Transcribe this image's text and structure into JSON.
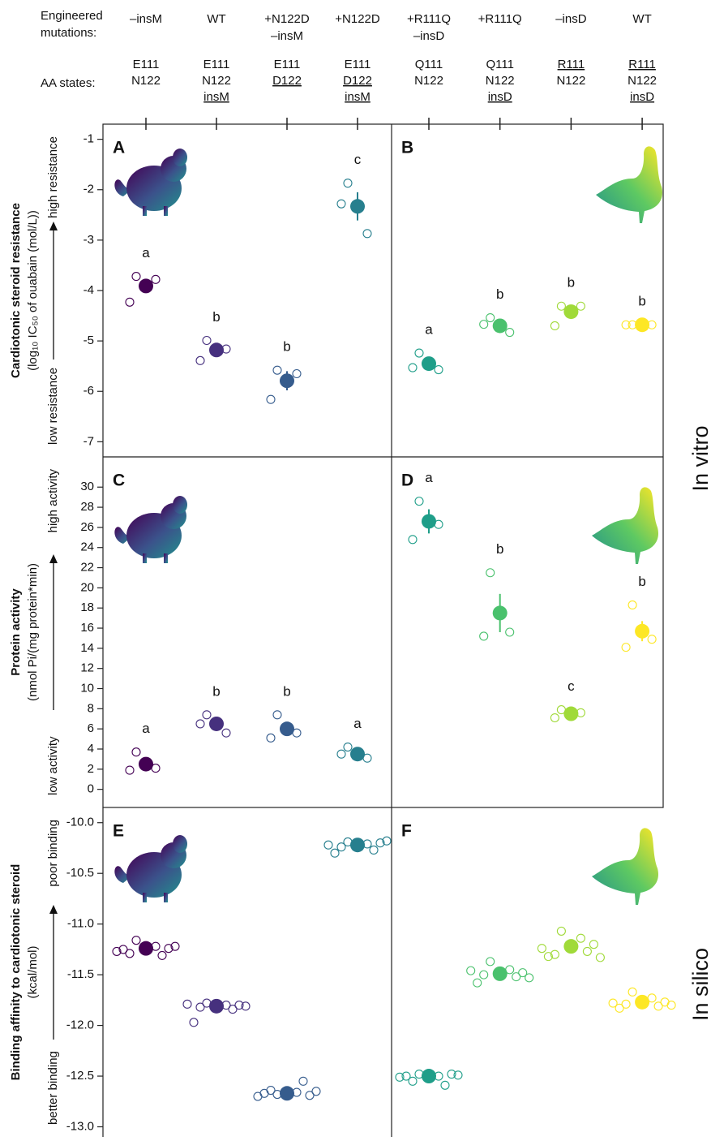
{
  "header": {
    "mutations_label": [
      "Engineered",
      "mutations:"
    ],
    "aa_label": "AA states:",
    "columns": [
      {
        "mutation": [
          "–insM"
        ],
        "aa": [
          {
            "text": "E111"
          },
          {
            "text": "N122"
          }
        ]
      },
      {
        "mutation": [
          "WT"
        ],
        "aa": [
          {
            "text": "E111"
          },
          {
            "text": "N122"
          },
          {
            "text": "insM",
            "underline": true
          }
        ]
      },
      {
        "mutation": [
          "+N122D",
          "–insM"
        ],
        "aa": [
          {
            "text": "E111"
          },
          {
            "text": "D122",
            "underline": true
          }
        ]
      },
      {
        "mutation": [
          "+N122D"
        ],
        "aa": [
          {
            "text": "E111"
          },
          {
            "text": "D122",
            "underline": true
          },
          {
            "text": "insM",
            "underline": true
          }
        ]
      },
      {
        "mutation": [
          "+R111Q",
          "–insD"
        ],
        "aa": [
          {
            "text": "Q111"
          },
          {
            "text": "N122"
          }
        ]
      },
      {
        "mutation": [
          "+R111Q"
        ],
        "aa": [
          {
            "text": "Q111"
          },
          {
            "text": "N122"
          },
          {
            "text": "insD",
            "underline": true
          }
        ]
      },
      {
        "mutation": [
          "–insD"
        ],
        "aa": [
          {
            "text": "R111",
            "underline": true
          },
          {
            "text": "N122"
          }
        ]
      },
      {
        "mutation": [
          "WT"
        ],
        "aa": [
          {
            "text": "R111",
            "underline": true
          },
          {
            "text": "N122"
          },
          {
            "text": "insD",
            "underline": true
          }
        ]
      }
    ]
  },
  "side_labels": [
    "In vitro",
    "In silico"
  ],
  "chart_data": [
    {
      "type": "scatter",
      "panel": "A",
      "ylim": [
        -7.3,
        -0.7
      ],
      "yticks": [
        -1,
        -2,
        -3,
        -4,
        -5,
        -6,
        -7
      ],
      "y_title": "Cardiotonic steroid resistance",
      "y_subtitle": "(log₁₀ IC₅₀ of ouabain (mol/L))",
      "y_low": "low resistance",
      "y_high": "high resistance",
      "groups": [
        {
          "color": "#440154",
          "letter": "a",
          "mean": -3.91,
          "replicates": [
            -3.72,
            -3.78,
            -4.23
          ]
        },
        {
          "color": "#46307e",
          "letter": "b",
          "mean": -5.18,
          "replicates": [
            -4.99,
            -5.16,
            -5.39
          ]
        },
        {
          "color": "#365c8d",
          "letter": "b",
          "mean": -5.79,
          "error": 0.19,
          "replicates": [
            -5.58,
            -5.65,
            -6.16
          ]
        },
        {
          "color": "#277f8e",
          "letter": "c",
          "mean": -2.33,
          "error": 0.28,
          "replicates": [
            -1.87,
            -2.87,
            -2.28
          ]
        }
      ]
    },
    {
      "type": "scatter",
      "panel": "B",
      "ylim": [
        -7.3,
        -0.7
      ],
      "groups": [
        {
          "color": "#1f9e89",
          "letter": "a",
          "mean": -5.45,
          "replicates": [
            -5.24,
            -5.57,
            -5.53
          ]
        },
        {
          "color": "#4ac16d",
          "letter": "b",
          "mean": -4.7,
          "replicates": [
            -4.54,
            -4.83,
            -4.67
          ]
        },
        {
          "color": "#a0da39",
          "letter": "b",
          "mean": -4.42,
          "replicates": [
            -4.31,
            -4.31,
            -4.7
          ]
        },
        {
          "color": "#fde725",
          "letter": "b",
          "mean": -4.68,
          "replicates": [
            -4.68,
            -4.68,
            -4.68
          ]
        }
      ]
    },
    {
      "type": "scatter",
      "panel": "C",
      "ylim": [
        -1.8,
        33
      ],
      "yticks": [
        0,
        2,
        4,
        6,
        8,
        10,
        12,
        14,
        16,
        18,
        20,
        22,
        24,
        26,
        28,
        30
      ],
      "y_title": "Protein activity",
      "y_subtitle": "(nmol Pi/(mg protein*min)",
      "y_low": "low activity",
      "y_high": "high activity",
      "groups": [
        {
          "color": "#440154",
          "letter": "a",
          "mean": 2.5,
          "replicates": [
            3.7,
            2.1,
            1.9
          ]
        },
        {
          "color": "#46307e",
          "letter": "b",
          "mean": 6.5,
          "replicates": [
            7.4,
            5.6,
            6.5
          ]
        },
        {
          "color": "#365c8d",
          "letter": "b",
          "mean": 6.0,
          "replicates": [
            7.4,
            5.6,
            5.1
          ]
        },
        {
          "color": "#277f8e",
          "letter": "a",
          "mean": 3.5,
          "replicates": [
            4.2,
            3.1,
            3.5
          ]
        }
      ]
    },
    {
      "type": "scatter",
      "panel": "D",
      "ylim": [
        -1.8,
        33
      ],
      "groups": [
        {
          "color": "#1f9e89",
          "letter": "a",
          "mean": 26.6,
          "error": 1.2,
          "replicates": [
            28.6,
            26.3,
            24.8
          ]
        },
        {
          "color": "#4ac16d",
          "letter": "b",
          "mean": 17.5,
          "error": 1.9,
          "replicates": [
            21.5,
            15.6,
            15.2
          ]
        },
        {
          "color": "#a0da39",
          "letter": "c",
          "mean": 7.5,
          "replicates": [
            7.9,
            7.6,
            7.1
          ]
        },
        {
          "color": "#fde725",
          "letter": "b",
          "mean": 15.7,
          "error": 1.0,
          "replicates": [
            18.3,
            14.9,
            14.1
          ]
        }
      ]
    },
    {
      "type": "scatter",
      "panel": "E",
      "ylim": [
        -13.1,
        -9.85
      ],
      "yticks": [
        {
          "value": -10,
          "label": "-10.0"
        },
        -10.5,
        {
          "value": -11,
          "label": "-11.0"
        },
        -11.5,
        {
          "value": -12,
          "label": "-12.0"
        },
        -12.5,
        {
          "value": -13,
          "label": "-13.0"
        }
      ],
      "y_title": "Binding affinity to cardiotonic steroid",
      "y_subtitle": "(kcal/mol)",
      "y_low": "better binding",
      "y_high": "poor binding",
      "groups": [
        {
          "color": "#440154",
          "mean": -11.24,
          "replicates": [
            -11.16,
            -11.22,
            -11.29,
            -11.31,
            -11.25,
            -11.24,
            -11.27,
            -11.22
          ]
        },
        {
          "color": "#46307e",
          "mean": -11.81,
          "replicates": [
            -11.78,
            -11.8,
            -11.82,
            -11.84,
            -11.97,
            -11.8,
            -11.79,
            -11.81
          ]
        },
        {
          "color": "#365c8d",
          "mean": -12.67,
          "replicates": [
            -12.68,
            -12.66,
            -12.64,
            -12.55,
            -12.67,
            -12.69,
            -12.7,
            -12.65
          ]
        },
        {
          "color": "#277f8e",
          "mean": -10.22,
          "replicates": [
            -10.19,
            -10.21,
            -10.24,
            -10.27,
            -10.3,
            -10.2,
            -10.22,
            -10.18
          ]
        }
      ]
    },
    {
      "type": "scatter",
      "panel": "F",
      "ylim": [
        -13.1,
        -9.85
      ],
      "groups": [
        {
          "color": "#1f9e89",
          "mean": -12.5,
          "replicates": [
            -12.48,
            -12.5,
            -12.55,
            -12.59,
            -12.5,
            -12.48,
            -12.51,
            -12.49
          ]
        },
        {
          "color": "#4ac16d",
          "mean": -11.49,
          "replicates": [
            -11.37,
            -11.45,
            -11.5,
            -11.52,
            -11.58,
            -11.48,
            -11.46,
            -11.53
          ]
        },
        {
          "color": "#a0da39",
          "mean": -11.22,
          "replicates": [
            -11.07,
            -11.14,
            -11.3,
            -11.27,
            -11.32,
            -11.2,
            -11.24,
            -11.33
          ]
        },
        {
          "color": "#fde725",
          "mean": -11.77,
          "replicates": [
            -11.67,
            -11.73,
            -11.79,
            -11.81,
            -11.83,
            -11.77,
            -11.78,
            -11.8
          ]
        }
      ]
    }
  ]
}
